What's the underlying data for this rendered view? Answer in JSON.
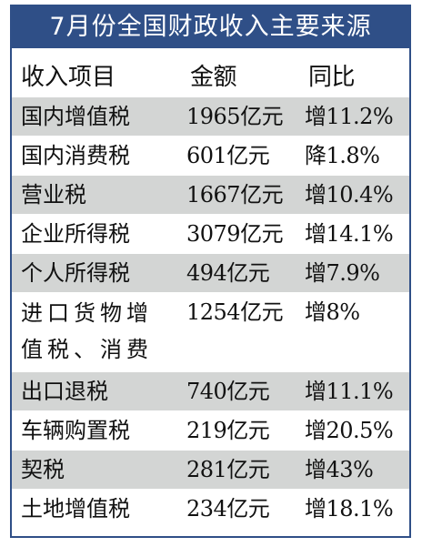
{
  "title": "7月份全国财政收入主要来源",
  "columns": [
    "收入项目",
    "金额",
    "同比"
  ],
  "rows": [
    {
      "item": "国内增值税",
      "amount": "1965亿元",
      "change": "增11.2%"
    },
    {
      "item": "国内消费税",
      "amount": "601亿元",
      "change": "降1.8%"
    },
    {
      "item": "营业税",
      "amount": "1667亿元",
      "change": "增10.4%"
    },
    {
      "item": "企业所得税",
      "amount": "3079亿元",
      "change": "增14.1%"
    },
    {
      "item": "个人所得税",
      "amount": "494亿元",
      "change": "增7.9%"
    },
    {
      "item": "进口货物增值税、消费税",
      "amount": "1254亿元",
      "change": "增8%"
    },
    {
      "item": "出口退税",
      "amount": "740亿元",
      "change": "增11.1%"
    },
    {
      "item": "车辆购置税",
      "amount": "219亿元",
      "change": "增20.5%"
    },
    {
      "item": "契税",
      "amount": "281亿元",
      "change": "增43%"
    },
    {
      "item": "土地增值税",
      "amount": "234亿元",
      "change": "增18.1%"
    }
  ],
  "colors": {
    "title_bg": "#2f4f87",
    "title_text": "#ffffff",
    "row_shade": "#d3d5d4",
    "text": "#111111"
  }
}
